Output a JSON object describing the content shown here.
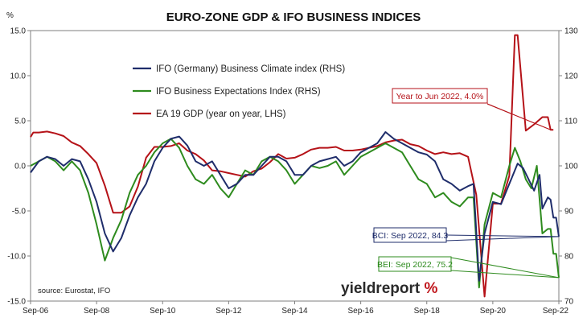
{
  "chart_data": {
    "type": "line",
    "title": "EURO-ZONE GDP & IFO BUSINESS INDICES",
    "left_axis": {
      "unit_label": "%",
      "ylim": [
        -15,
        15
      ],
      "ticks": [
        "15.0",
        "10.0",
        "5.0",
        "0.0",
        "-5.0",
        "-10.0",
        "-15.0"
      ],
      "tick_values": [
        15,
        10,
        5,
        0,
        -5,
        -10,
        -15
      ]
    },
    "right_axis": {
      "ylim": [
        70,
        130
      ],
      "ticks": [
        "130",
        "120",
        "110",
        "100",
        "90",
        "80",
        "70"
      ],
      "tick_values": [
        130,
        120,
        110,
        100,
        90,
        80,
        70
      ]
    },
    "x_axis": {
      "range": [
        "2006-09",
        "2022-09"
      ],
      "tick_labels": [
        "Sep-06",
        "Sep-08",
        "Sep-10",
        "Sep-12",
        "Sep-14",
        "Sep-16",
        "Sep-18",
        "Sep-20",
        "Sep-22"
      ],
      "tick_dates": [
        "2006-09",
        "2008-09",
        "2010-09",
        "2012-09",
        "2014-09",
        "2016-09",
        "2018-09",
        "2020-09",
        "2022-09"
      ]
    },
    "grid": false,
    "legend_position": "top-left",
    "series": [
      {
        "name": "IFO (Germany) Business Climate index (RHS)",
        "axis": "right",
        "color": "#1f2d6b",
        "points": [
          [
            "2006-09",
            98.5
          ],
          [
            "2006-12",
            101
          ],
          [
            "2007-03",
            102
          ],
          [
            "2007-06",
            101.5
          ],
          [
            "2007-09",
            100
          ],
          [
            "2007-12",
            101.5
          ],
          [
            "2008-03",
            101
          ],
          [
            "2008-06",
            97
          ],
          [
            "2008-09",
            92
          ],
          [
            "2008-12",
            85
          ],
          [
            "2009-03",
            81
          ],
          [
            "2009-06",
            84
          ],
          [
            "2009-09",
            89
          ],
          [
            "2009-12",
            93
          ],
          [
            "2010-03",
            96
          ],
          [
            "2010-06",
            101
          ],
          [
            "2010-09",
            104
          ],
          [
            "2010-12",
            106
          ],
          [
            "2011-03",
            106.5
          ],
          [
            "2011-06",
            104.5
          ],
          [
            "2011-09",
            101
          ],
          [
            "2011-12",
            100
          ],
          [
            "2012-03",
            101
          ],
          [
            "2012-06",
            98
          ],
          [
            "2012-09",
            95
          ],
          [
            "2012-12",
            96
          ],
          [
            "2013-03",
            98
          ],
          [
            "2013-06",
            98
          ],
          [
            "2013-09",
            100
          ],
          [
            "2013-12",
            102
          ],
          [
            "2014-03",
            102
          ],
          [
            "2014-06",
            101
          ],
          [
            "2014-09",
            98
          ],
          [
            "2014-12",
            98
          ],
          [
            "2015-03",
            100
          ],
          [
            "2015-06",
            101
          ],
          [
            "2015-09",
            101.5
          ],
          [
            "2015-12",
            102
          ],
          [
            "2016-03",
            100
          ],
          [
            "2016-06",
            101
          ],
          [
            "2016-09",
            103
          ],
          [
            "2016-12",
            104
          ],
          [
            "2017-03",
            105
          ],
          [
            "2017-06",
            107.5
          ],
          [
            "2017-09",
            106
          ],
          [
            "2017-12",
            105
          ],
          [
            "2018-03",
            104
          ],
          [
            "2018-06",
            103
          ],
          [
            "2018-09",
            102.5
          ],
          [
            "2018-12",
            101
          ],
          [
            "2019-03",
            97
          ],
          [
            "2019-06",
            96
          ],
          [
            "2019-09",
            94.5
          ],
          [
            "2019-12",
            95.5
          ],
          [
            "2020-02",
            96
          ],
          [
            "2020-04",
            74.5
          ],
          [
            "2020-06",
            85
          ],
          [
            "2020-09",
            92
          ],
          [
            "2020-12",
            91.5
          ],
          [
            "2021-03",
            96
          ],
          [
            "2021-06",
            100.5
          ],
          [
            "2021-08",
            99.5
          ],
          [
            "2021-10",
            97
          ],
          [
            "2021-12",
            94.5
          ],
          [
            "2022-02",
            98
          ],
          [
            "2022-03",
            90.5
          ],
          [
            "2022-05",
            93
          ],
          [
            "2022-06",
            92.5
          ],
          [
            "2022-07",
            88.5
          ],
          [
            "2022-08",
            88.5
          ],
          [
            "2022-09",
            84.3
          ]
        ]
      },
      {
        "name": "IFO Business Expectations Index (RHS)",
        "axis": "right",
        "color": "#2e8b1e",
        "points": [
          [
            "2006-09",
            100
          ],
          [
            "2006-12",
            101
          ],
          [
            "2007-03",
            102
          ],
          [
            "2007-06",
            101
          ],
          [
            "2007-09",
            99
          ],
          [
            "2007-12",
            101
          ],
          [
            "2008-03",
            99
          ],
          [
            "2008-06",
            94
          ],
          [
            "2008-09",
            87
          ],
          [
            "2008-12",
            79
          ],
          [
            "2009-03",
            84
          ],
          [
            "2009-06",
            88
          ],
          [
            "2009-09",
            94
          ],
          [
            "2009-12",
            98
          ],
          [
            "2010-03",
            100
          ],
          [
            "2010-06",
            103
          ],
          [
            "2010-09",
            105
          ],
          [
            "2010-12",
            106
          ],
          [
            "2011-03",
            104
          ],
          [
            "2011-06",
            100
          ],
          [
            "2011-09",
            97
          ],
          [
            "2011-12",
            96
          ],
          [
            "2012-03",
            98
          ],
          [
            "2012-06",
            95
          ],
          [
            "2012-09",
            93
          ],
          [
            "2012-12",
            96
          ],
          [
            "2013-03",
            99
          ],
          [
            "2013-06",
            98
          ],
          [
            "2013-09",
            101
          ],
          [
            "2013-12",
            102
          ],
          [
            "2014-03",
            101
          ],
          [
            "2014-06",
            99
          ],
          [
            "2014-09",
            96
          ],
          [
            "2014-12",
            98
          ],
          [
            "2015-03",
            100
          ],
          [
            "2015-06",
            99.5
          ],
          [
            "2015-09",
            100
          ],
          [
            "2015-12",
            101
          ],
          [
            "2016-03",
            98
          ],
          [
            "2016-06",
            100
          ],
          [
            "2016-09",
            102
          ],
          [
            "2016-12",
            103
          ],
          [
            "2017-03",
            104
          ],
          [
            "2017-06",
            105
          ],
          [
            "2017-09",
            104
          ],
          [
            "2017-12",
            103
          ],
          [
            "2018-03",
            100
          ],
          [
            "2018-06",
            97
          ],
          [
            "2018-09",
            96
          ],
          [
            "2018-12",
            93
          ],
          [
            "2019-03",
            94
          ],
          [
            "2019-06",
            92
          ],
          [
            "2019-09",
            91
          ],
          [
            "2019-12",
            93
          ],
          [
            "2020-02",
            93
          ],
          [
            "2020-04",
            73
          ],
          [
            "2020-06",
            87
          ],
          [
            "2020-09",
            94
          ],
          [
            "2020-12",
            93
          ],
          [
            "2021-03",
            100
          ],
          [
            "2021-05",
            104
          ],
          [
            "2021-07",
            101
          ],
          [
            "2021-09",
            97
          ],
          [
            "2021-11",
            95
          ],
          [
            "2022-01",
            100
          ],
          [
            "2022-03",
            85
          ],
          [
            "2022-05",
            86
          ],
          [
            "2022-06",
            86
          ],
          [
            "2022-07",
            80.5
          ],
          [
            "2022-08",
            80.5
          ],
          [
            "2022-09",
            75.2
          ]
        ]
      },
      {
        "name": "EA 19 GDP (year on year, LHS)",
        "axis": "left",
        "color": "#b51218",
        "points": [
          [
            "2006-09",
            3.2
          ],
          [
            "2006-10",
            3.7
          ],
          [
            "2006-12",
            3.7
          ],
          [
            "2007-03",
            3.8
          ],
          [
            "2007-06",
            3.6
          ],
          [
            "2007-09",
            3.3
          ],
          [
            "2007-12",
            2.6
          ],
          [
            "2008-03",
            2.2
          ],
          [
            "2008-06",
            1.3
          ],
          [
            "2008-09",
            0.3
          ],
          [
            "2008-12",
            -2.2
          ],
          [
            "2009-03",
            -5.2
          ],
          [
            "2009-06",
            -5.2
          ],
          [
            "2009-09",
            -4.5
          ],
          [
            "2009-12",
            -2.3
          ],
          [
            "2010-03",
            0.9
          ],
          [
            "2010-06",
            2.1
          ],
          [
            "2010-09",
            2.1
          ],
          [
            "2010-12",
            2.2
          ],
          [
            "2011-03",
            2.5
          ],
          [
            "2011-06",
            1.7
          ],
          [
            "2011-09",
            1.3
          ],
          [
            "2011-12",
            0.6
          ],
          [
            "2012-03",
            -0.5
          ],
          [
            "2012-06",
            -0.6
          ],
          [
            "2012-09",
            -0.8
          ],
          [
            "2012-12",
            -1.0
          ],
          [
            "2013-03",
            -1.2
          ],
          [
            "2013-06",
            -0.6
          ],
          [
            "2013-09",
            -0.3
          ],
          [
            "2013-12",
            0.4
          ],
          [
            "2014-03",
            1.3
          ],
          [
            "2014-06",
            0.8
          ],
          [
            "2014-09",
            0.9
          ],
          [
            "2014-12",
            1.3
          ],
          [
            "2015-03",
            1.8
          ],
          [
            "2015-06",
            2.0
          ],
          [
            "2015-09",
            2.0
          ],
          [
            "2015-12",
            2.1
          ],
          [
            "2016-03",
            1.7
          ],
          [
            "2016-06",
            1.7
          ],
          [
            "2016-09",
            1.8
          ],
          [
            "2016-12",
            2.0
          ],
          [
            "2017-03",
            2.2
          ],
          [
            "2017-06",
            2.6
          ],
          [
            "2017-09",
            2.8
          ],
          [
            "2017-12",
            2.9
          ],
          [
            "2018-03",
            2.4
          ],
          [
            "2018-06",
            2.2
          ],
          [
            "2018-09",
            1.7
          ],
          [
            "2018-12",
            1.3
          ],
          [
            "2019-03",
            1.5
          ],
          [
            "2019-06",
            1.3
          ],
          [
            "2019-09",
            1.4
          ],
          [
            "2019-12",
            1.0
          ],
          [
            "2020-03",
            -3.2
          ],
          [
            "2020-06",
            -14.5
          ],
          [
            "2020-09",
            -4.2
          ],
          [
            "2020-12",
            -4.2
          ],
          [
            "2021-03",
            -1.1
          ],
          [
            "2021-05",
            14.5
          ],
          [
            "2021-06",
            14.5
          ],
          [
            "2021-09",
            3.9
          ],
          [
            "2021-12",
            4.6
          ],
          [
            "2022-03",
            5.4
          ],
          [
            "2022-05",
            5.4
          ],
          [
            "2022-06",
            4.0
          ],
          [
            "2022-07",
            4.0
          ]
        ]
      }
    ],
    "annotations": {
      "gdp": {
        "text": "Year to Jun 2022, 4.0%",
        "color": "#b51218",
        "points_to": [
          "2022-06",
          4.0
        ]
      },
      "bci": {
        "text": "BCI: Sep 2022, 84.3",
        "color": "#1f2d6b",
        "points_to": [
          "2022-09",
          84.3
        ]
      },
      "bei": {
        "text": "BEI: Sep 2022, 75.2",
        "color": "#2e8b1e",
        "points_to": [
          "2022-09",
          75.2
        ]
      }
    },
    "source": "source: Eurostat, IFO"
  },
  "logo": {
    "text": "yieldreport",
    "symbol": "%"
  }
}
